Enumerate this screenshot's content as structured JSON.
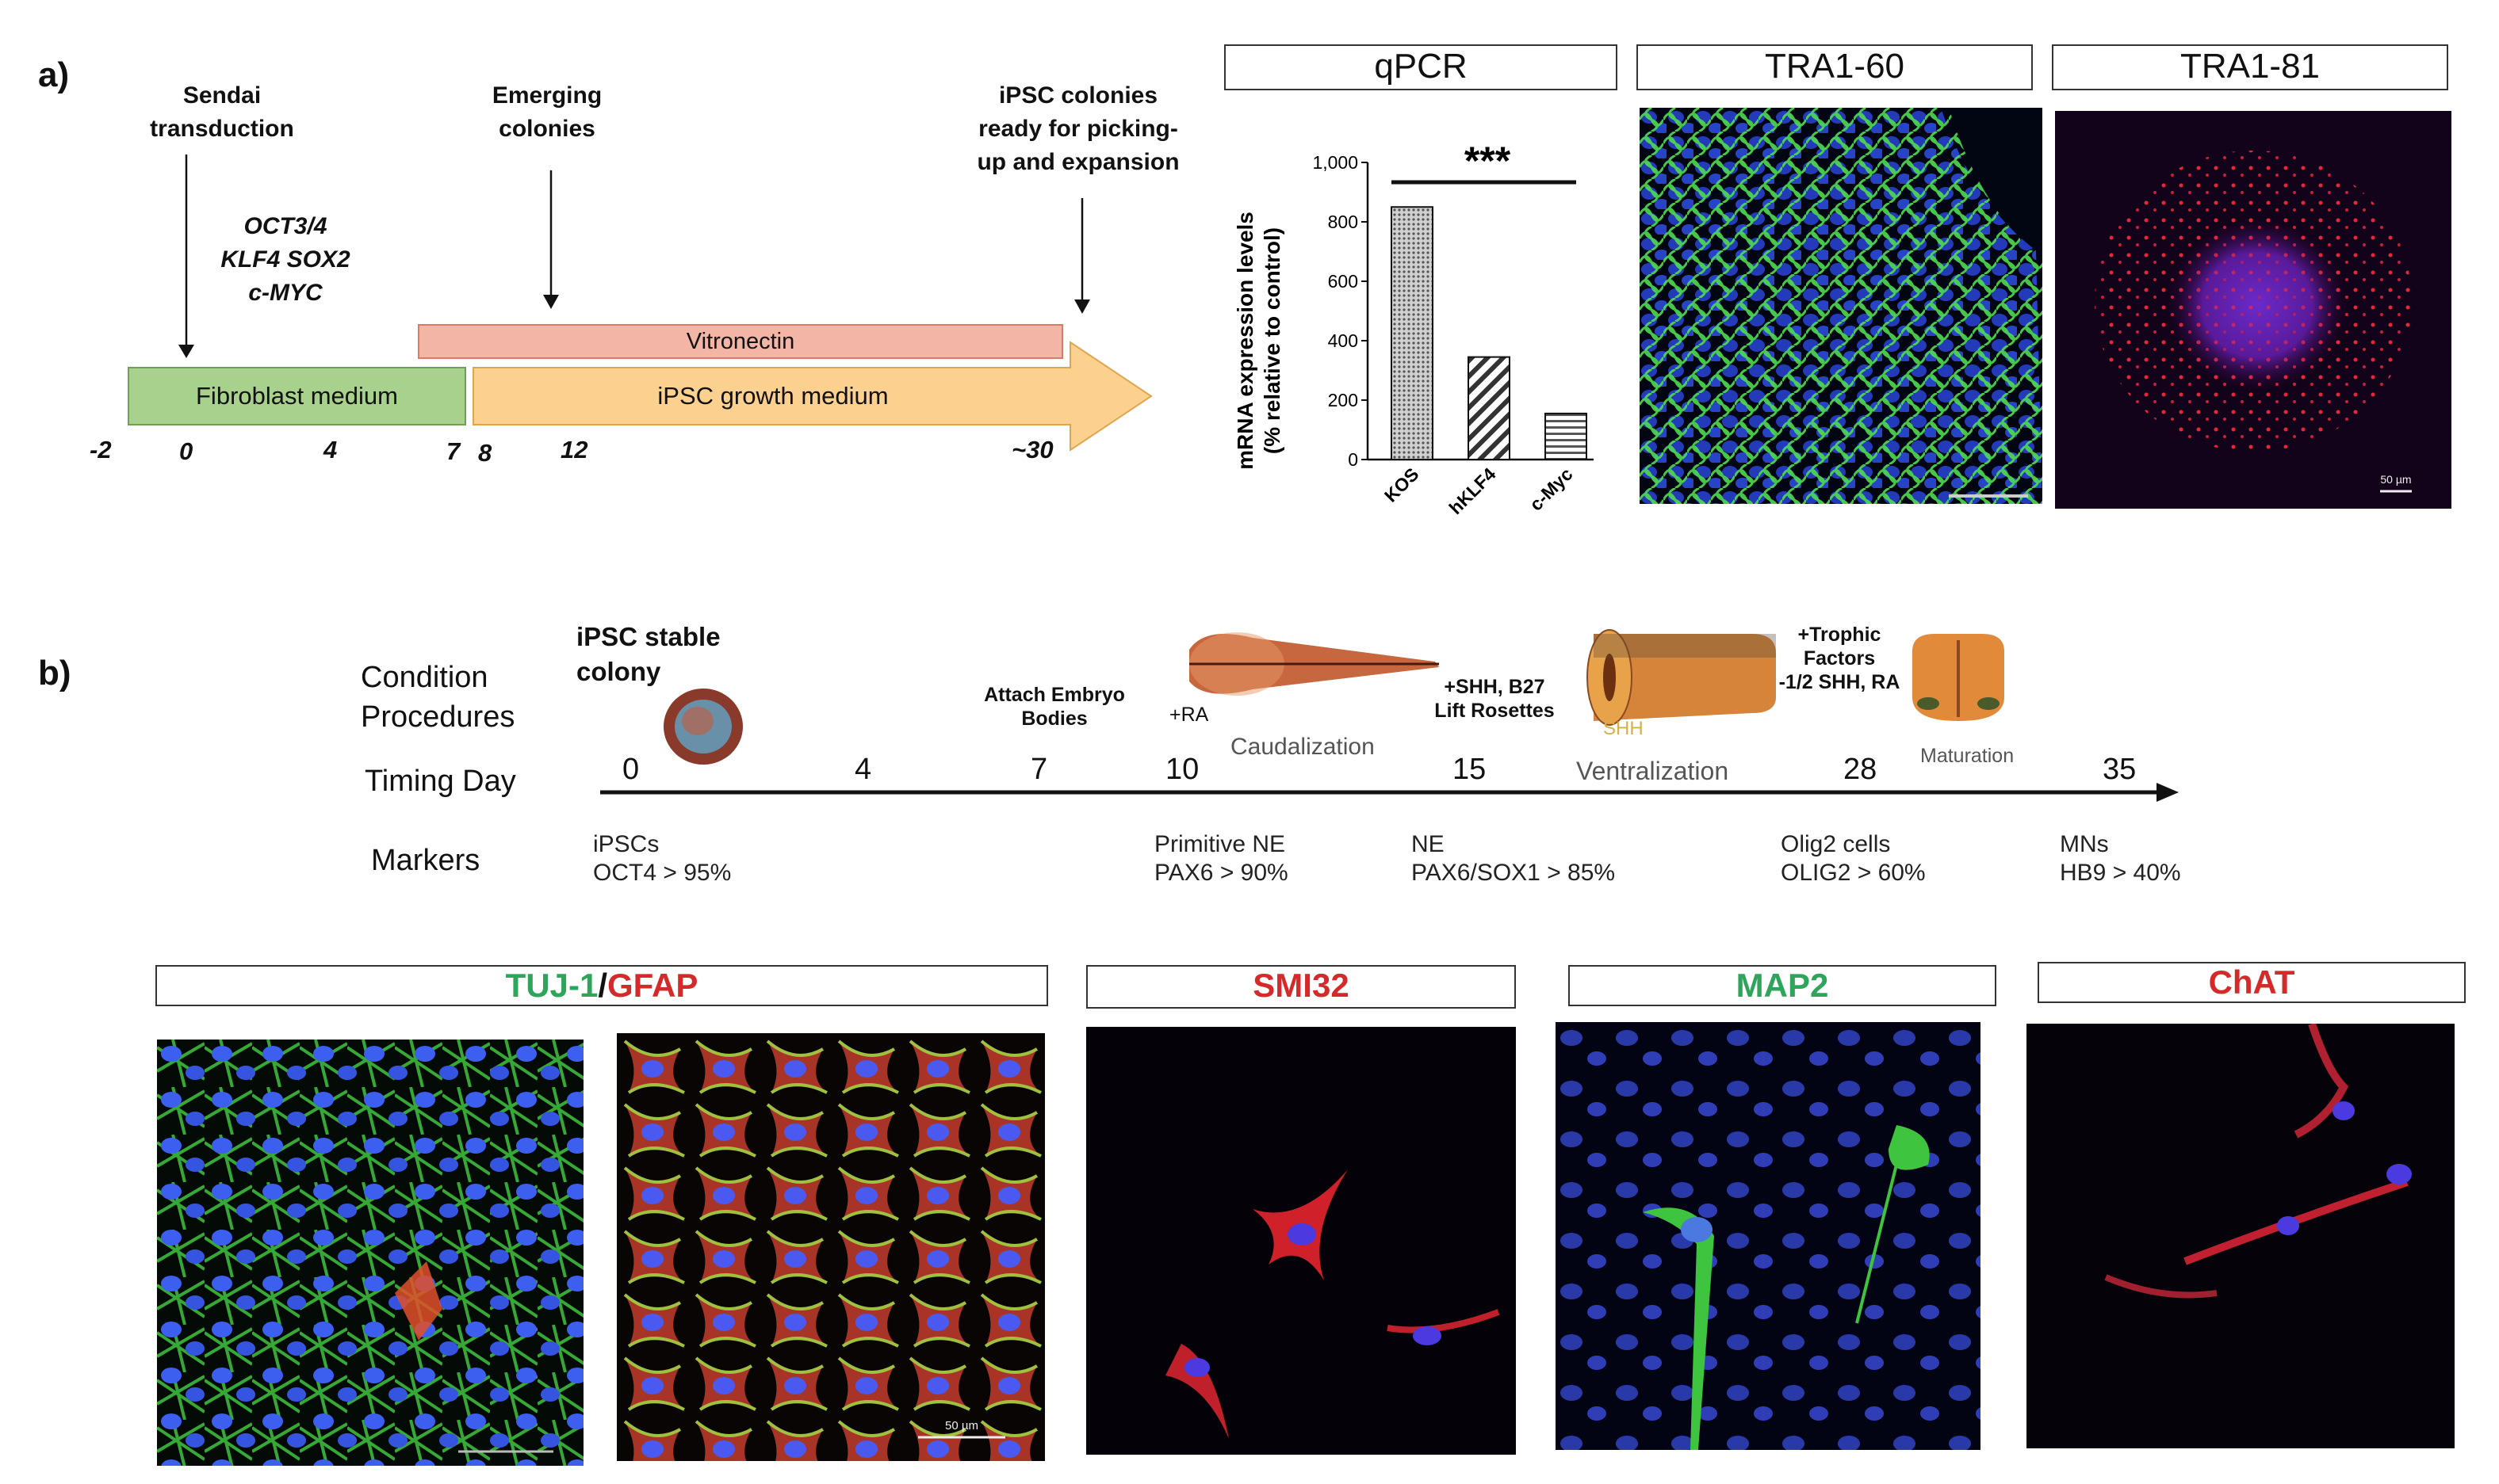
{
  "panel_a": {
    "label": "a)",
    "events": [
      {
        "text": "Sendai\ntransduction"
      },
      {
        "text": "Emerging\ncolonies"
      },
      {
        "text": "iPSC colonies\nready for picking-\nup and expansion"
      }
    ],
    "genes": [
      "OCT3/4",
      "KLF4 SOX2",
      "c-MYC"
    ],
    "bars": {
      "vitronectin": "Vitronectin",
      "fibroblast": "Fibroblast medium",
      "growth": "iPSC growth medium"
    },
    "days": [
      "-2",
      "0",
      "4",
      "7",
      "8",
      "12",
      "~30"
    ],
    "colors": {
      "vitronectin": "#f3b6a6",
      "fibroblast": "#a9d18e",
      "growth": "#fcd08f"
    }
  },
  "qpcr": {
    "title": "qPCR",
    "significance": "***",
    "chart_data": {
      "type": "bar",
      "categories": [
        "KOS",
        "hKLF4",
        "c-Myc"
      ],
      "values": [
        850,
        345,
        155
      ],
      "ylabel": "mRNA expression levels\n(% relative to control)",
      "ylim": [
        0,
        1000
      ],
      "yticks": [
        "0",
        "200",
        "400",
        "600",
        "800",
        "1,000"
      ]
    }
  },
  "stains_a": [
    {
      "title": "TRA1-60"
    },
    {
      "title": "TRA1-81",
      "scale": "50 µm"
    }
  ],
  "panel_b": {
    "label": "b)",
    "row_labels": {
      "condition": "Condition\nProcedures",
      "timing": "Timing Day",
      "markers": "Markers"
    },
    "colony_title": "iPSC stable\ncolony",
    "days": [
      "0",
      "4",
      "7",
      "10",
      "15",
      "28",
      "35"
    ],
    "procedures": [
      {
        "text": "Attach Embryo\nBodies"
      },
      {
        "text": "+RA"
      },
      {
        "text": "+SHH, B27\nLift Rosettes"
      },
      {
        "text": "+Trophic\nFactors\n-1/2 SHH, RA"
      }
    ],
    "stages": [
      "Caudalization",
      "Ventralization",
      "Maturation"
    ],
    "shh_label": "SHH",
    "markers": [
      {
        "text": "iPSCs\nOCT4 > 95%"
      },
      {
        "text": "Primitive NE\nPAX6 > 90%"
      },
      {
        "text": "NE\nPAX6/SOX1 > 85%"
      },
      {
        "text": "Olig2 cells\nOLIG2 > 60%"
      },
      {
        "text": "MNs\nHB9 > 40%"
      }
    ]
  },
  "stains_b": {
    "tuj1": "TUJ-1",
    "slash": "/",
    "gfap": "GFAP",
    "smi32": "SMI32",
    "map2": "MAP2",
    "chat": "ChAT",
    "scale": "50 µm",
    "colors": {
      "green": "#2ea55a",
      "red": "#d42a2a"
    }
  }
}
